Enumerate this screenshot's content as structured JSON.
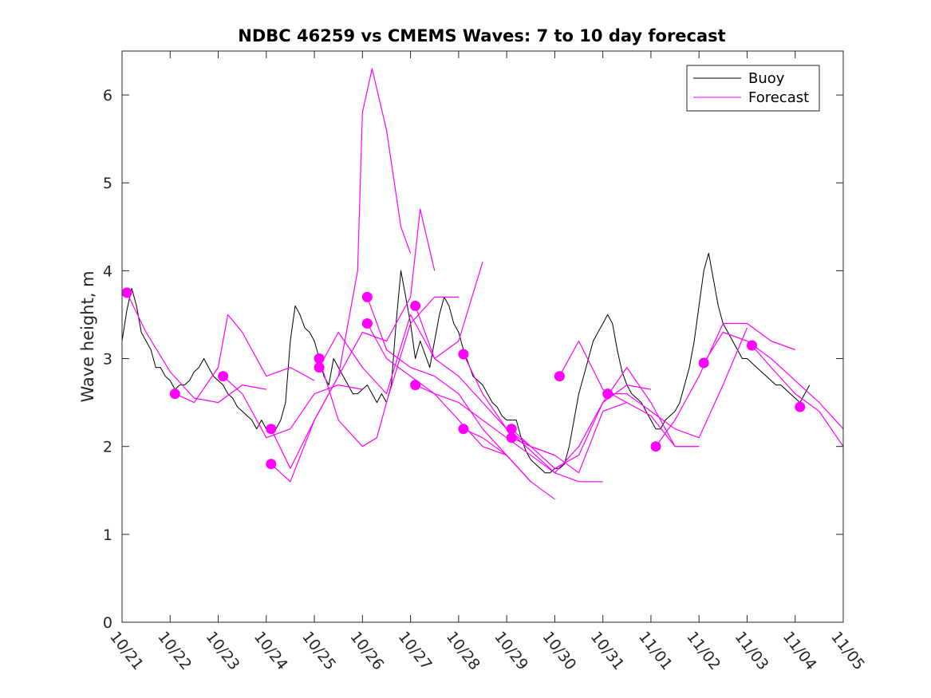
{
  "chart_data": {
    "type": "line",
    "title": "NDBC 46259 vs CMEMS Waves: 7 to 10 day forecast",
    "xlabel": "",
    "ylabel": "Wave height, m",
    "xlim": [
      0,
      15
    ],
    "ylim": [
      0,
      6.5
    ],
    "x_ticks": [
      {
        "day": 0,
        "label": "10/21"
      },
      {
        "day": 1,
        "label": "10/22"
      },
      {
        "day": 2,
        "label": "10/23"
      },
      {
        "day": 3,
        "label": "10/24"
      },
      {
        "day": 4,
        "label": "10/25"
      },
      {
        "day": 5,
        "label": "10/26"
      },
      {
        "day": 6,
        "label": "10/27"
      },
      {
        "day": 7,
        "label": "10/28"
      },
      {
        "day": 8,
        "label": "10/29"
      },
      {
        "day": 9,
        "label": "10/30"
      },
      {
        "day": 10,
        "label": "10/31"
      },
      {
        "day": 11,
        "label": "11/01"
      },
      {
        "day": 12,
        "label": "11/02"
      },
      {
        "day": 13,
        "label": "11/03"
      },
      {
        "day": 14,
        "label": "11/04"
      },
      {
        "day": 15,
        "label": "11/05"
      }
    ],
    "y_ticks": [
      "0",
      "1",
      "2",
      "3",
      "4",
      "5",
      "6"
    ],
    "legend": {
      "position": "top-right",
      "entries": [
        {
          "label": "Buoy",
          "color": "#000000"
        },
        {
          "label": "Forecast",
          "color": "#ff00ff"
        }
      ]
    },
    "colors": {
      "buoy": "#000000",
      "forecast": "#ff00ff"
    },
    "series": [
      {
        "name": "Buoy",
        "x": [
          0.0,
          0.1,
          0.2,
          0.3,
          0.4,
          0.5,
          0.6,
          0.7,
          0.8,
          0.9,
          1.0,
          1.1,
          1.2,
          1.3,
          1.4,
          1.5,
          1.6,
          1.7,
          1.8,
          1.9,
          2.0,
          2.1,
          2.2,
          2.3,
          2.4,
          2.5,
          2.6,
          2.7,
          2.8,
          2.9,
          3.0,
          3.1,
          3.2,
          3.3,
          3.4,
          3.5,
          3.6,
          3.7,
          3.8,
          3.9,
          4.0,
          4.1,
          4.2,
          4.3,
          4.4,
          4.5,
          4.6,
          4.7,
          4.8,
          4.9,
          5.0,
          5.1,
          5.2,
          5.3,
          5.4,
          5.5,
          5.6,
          5.7,
          5.8,
          5.9,
          6.0,
          6.1,
          6.2,
          6.3,
          6.4,
          6.5,
          6.6,
          6.7,
          6.8,
          6.9,
          7.0,
          7.1,
          7.2,
          7.3,
          7.4,
          7.5,
          7.6,
          7.7,
          7.8,
          7.9,
          8.0,
          8.1,
          8.2,
          8.3,
          8.4,
          8.5,
          8.6,
          8.7,
          8.8,
          8.9,
          9.0,
          9.1,
          9.2,
          9.3,
          9.4,
          9.5,
          9.6,
          9.7,
          9.8,
          9.9,
          10.0,
          10.1,
          10.2,
          10.3,
          10.4,
          10.5,
          10.6,
          10.7,
          10.8,
          10.9,
          11.0,
          11.1,
          11.2,
          11.3,
          11.4,
          11.5,
          11.6,
          11.7,
          11.8,
          11.9,
          12.0,
          12.1,
          12.2,
          12.3,
          12.4,
          12.5,
          12.6,
          12.7,
          12.8,
          12.9,
          13.0,
          13.1,
          13.2,
          13.3,
          13.4,
          13.5,
          13.6,
          13.7,
          13.8,
          13.9,
          14.0,
          14.1,
          14.2,
          14.3
        ],
        "values": [
          3.2,
          3.55,
          3.8,
          3.6,
          3.3,
          3.2,
          3.1,
          2.9,
          2.9,
          2.8,
          2.75,
          2.65,
          2.7,
          2.7,
          2.75,
          2.85,
          2.9,
          3.0,
          2.9,
          2.8,
          2.75,
          2.7,
          2.6,
          2.55,
          2.45,
          2.4,
          2.35,
          2.3,
          2.2,
          2.3,
          2.2,
          2.15,
          2.2,
          2.3,
          2.5,
          3.2,
          3.6,
          3.5,
          3.35,
          3.3,
          3.2,
          3.0,
          2.8,
          2.7,
          3.0,
          2.9,
          2.8,
          2.7,
          2.6,
          2.6,
          2.65,
          2.7,
          2.6,
          2.5,
          2.6,
          2.5,
          2.7,
          3.4,
          4.0,
          3.7,
          3.4,
          3.0,
          3.2,
          3.05,
          2.9,
          3.2,
          3.5,
          3.7,
          3.6,
          3.4,
          3.3,
          3.1,
          2.95,
          2.8,
          2.75,
          2.7,
          2.6,
          2.5,
          2.45,
          2.35,
          2.3,
          2.3,
          2.3,
          2.1,
          1.95,
          1.85,
          1.8,
          1.75,
          1.7,
          1.7,
          1.75,
          1.75,
          1.8,
          2.0,
          2.3,
          2.6,
          2.8,
          3.0,
          3.2,
          3.3,
          3.4,
          3.5,
          3.4,
          3.1,
          2.85,
          2.7,
          2.6,
          2.55,
          2.5,
          2.4,
          2.3,
          2.2,
          2.2,
          2.3,
          2.35,
          2.4,
          2.5,
          2.7,
          2.9,
          3.2,
          3.6,
          4.0,
          4.2,
          3.9,
          3.6,
          3.4,
          3.3,
          3.2,
          3.1,
          3.0,
          3.0,
          2.95,
          2.9,
          2.85,
          2.8,
          2.75,
          2.7,
          2.7,
          2.65,
          2.6,
          2.55,
          2.5,
          2.6,
          2.7
        ]
      },
      {
        "name": "Forecast 1",
        "x": [
          0.1,
          0.5,
          1.0,
          1.5,
          2.0,
          2.5,
          3.0
        ],
        "values": [
          3.75,
          3.3,
          2.85,
          2.55,
          2.5,
          2.7,
          2.65
        ]
      },
      {
        "name": "Forecast 2",
        "x": [
          1.1,
          1.5,
          2.0,
          2.2,
          2.5,
          3.0,
          3.5,
          4.0
        ],
        "values": [
          2.6,
          2.5,
          2.9,
          3.5,
          3.3,
          2.8,
          2.9,
          2.75
        ]
      },
      {
        "name": "Forecast 3",
        "x": [
          2.1,
          2.5,
          3.0,
          3.5,
          4.0,
          4.5,
          5.0
        ],
        "values": [
          2.8,
          2.6,
          2.1,
          2.2,
          2.6,
          2.7,
          2.65
        ]
      },
      {
        "name": "Forecast 4",
        "x": [
          3.1,
          3.5,
          4.0,
          4.5,
          4.9,
          5.0,
          5.2,
          5.5,
          5.8,
          6.0
        ],
        "values": [
          2.2,
          1.75,
          2.3,
          2.8,
          4.0,
          5.8,
          6.3,
          5.6,
          4.5,
          4.2
        ]
      },
      {
        "name": "Forecast 5",
        "x": [
          3.1,
          3.5,
          4.0,
          4.5,
          5.0,
          5.5,
          6.0,
          6.2,
          6.5
        ],
        "values": [
          1.8,
          1.6,
          2.3,
          2.8,
          3.3,
          3.2,
          3.7,
          4.7,
          4.0
        ]
      },
      {
        "name": "Forecast 6",
        "x": [
          4.1,
          4.5,
          5.0,
          5.5,
          6.0,
          6.5,
          7.0,
          7.5
        ],
        "values": [
          2.9,
          3.3,
          2.9,
          2.6,
          3.5,
          3.0,
          3.2,
          4.1
        ]
      },
      {
        "name": "Forecast 7",
        "x": [
          4.1,
          4.5,
          5.0,
          5.3,
          5.5,
          6.0,
          6.5,
          7.0
        ],
        "values": [
          3.0,
          2.3,
          2.0,
          2.1,
          2.5,
          3.4,
          3.7,
          3.7
        ]
      },
      {
        "name": "Forecast 8",
        "x": [
          5.1,
          5.5,
          6.0,
          6.5,
          7.0,
          7.5,
          8.0,
          8.5
        ],
        "values": [
          3.7,
          3.1,
          2.9,
          2.8,
          2.6,
          2.2,
          1.9,
          1.6
        ]
      },
      {
        "name": "Forecast 9",
        "x": [
          5.1,
          5.5,
          6.0,
          6.5,
          7.0,
          7.5,
          8.0
        ],
        "values": [
          3.4,
          3.0,
          2.8,
          2.6,
          2.3,
          2.0,
          1.9
        ]
      },
      {
        "name": "Forecast 10",
        "x": [
          6.1,
          6.5,
          7.0,
          7.5,
          8.0,
          8.5,
          9.0
        ],
        "values": [
          3.6,
          3.0,
          2.8,
          2.5,
          2.2,
          2.0,
          1.9
        ]
      },
      {
        "name": "Forecast 11",
        "x": [
          6.1,
          6.5,
          7.0,
          7.5,
          8.0,
          8.5,
          9.0,
          9.5,
          10.0
        ],
        "values": [
          2.7,
          2.6,
          2.5,
          2.3,
          2.1,
          1.9,
          1.7,
          1.6,
          1.6
        ]
      },
      {
        "name": "Forecast 12",
        "x": [
          7.1,
          7.5,
          8.0,
          8.5,
          9.0,
          9.5,
          10.0,
          10.5,
          11.0
        ],
        "values": [
          3.05,
          2.6,
          2.2,
          1.95,
          1.7,
          2.0,
          2.5,
          2.7,
          2.65
        ]
      },
      {
        "name": "Forecast 13",
        "x": [
          7.1,
          7.5,
          8.0,
          8.5,
          9.0
        ],
        "values": [
          2.2,
          2.1,
          1.9,
          1.6,
          1.4
        ]
      },
      {
        "name": "Forecast 14",
        "x": [
          8.1,
          8.5,
          9.0,
          9.5,
          10.0,
          10.5,
          11.0,
          11.5,
          12.0
        ],
        "values": [
          2.2,
          2.0,
          1.75,
          1.9,
          2.5,
          2.9,
          2.5,
          2.0,
          2.0
        ]
      },
      {
        "name": "Forecast 15",
        "x": [
          8.1,
          8.5,
          9.0,
          9.5,
          10.0,
          10.5
        ],
        "values": [
          2.1,
          2.0,
          1.9,
          1.7,
          2.4,
          2.5
        ]
      },
      {
        "name": "Forecast 16",
        "x": [
          9.1,
          9.5,
          10.0,
          10.5,
          11.0,
          11.5,
          12.0
        ],
        "values": [
          2.8,
          3.2,
          2.65,
          2.5,
          2.35,
          2.0,
          2.0
        ]
      },
      {
        "name": "Forecast 17",
        "x": [
          10.1,
          10.5,
          11.0,
          11.5,
          12.0,
          12.5,
          13.0
        ],
        "values": [
          2.6,
          2.6,
          2.4,
          2.2,
          2.1,
          2.7,
          3.35
        ]
      },
      {
        "name": "Forecast 18",
        "x": [
          11.1,
          11.5,
          12.0,
          12.5,
          13.0,
          13.5,
          14.0
        ],
        "values": [
          2.0,
          2.3,
          2.8,
          3.4,
          3.4,
          3.2,
          3.1
        ]
      },
      {
        "name": "Forecast 19",
        "x": [
          12.1,
          12.5,
          13.0,
          13.5,
          14.0,
          14.5,
          15.0
        ],
        "values": [
          2.95,
          3.3,
          3.2,
          3.0,
          2.75,
          2.5,
          2.2
        ]
      },
      {
        "name": "Forecast 20",
        "x": [
          13.1,
          13.5,
          14.0,
          14.5,
          15.0
        ],
        "values": [
          3.15,
          2.9,
          2.6,
          2.4,
          2.0
        ]
      }
    ],
    "forecast_start_markers": [
      {
        "day": 0.1,
        "value": 3.75
      },
      {
        "day": 1.1,
        "value": 2.6
      },
      {
        "day": 2.1,
        "value": 2.8
      },
      {
        "day": 3.1,
        "value": 2.2
      },
      {
        "day": 3.1,
        "value": 1.8
      },
      {
        "day": 4.1,
        "value": 3.0
      },
      {
        "day": 4.1,
        "value": 2.9
      },
      {
        "day": 5.1,
        "value": 3.7
      },
      {
        "day": 5.1,
        "value": 3.4
      },
      {
        "day": 6.1,
        "value": 3.6
      },
      {
        "day": 6.1,
        "value": 2.7
      },
      {
        "day": 7.1,
        "value": 3.05
      },
      {
        "day": 7.1,
        "value": 2.2
      },
      {
        "day": 8.1,
        "value": 2.2
      },
      {
        "day": 8.1,
        "value": 2.1
      },
      {
        "day": 9.1,
        "value": 2.8
      },
      {
        "day": 10.1,
        "value": 2.6
      },
      {
        "day": 11.1,
        "value": 2.0
      },
      {
        "day": 12.1,
        "value": 2.95
      },
      {
        "day": 13.1,
        "value": 3.15
      },
      {
        "day": 14.1,
        "value": 2.45
      }
    ]
  }
}
